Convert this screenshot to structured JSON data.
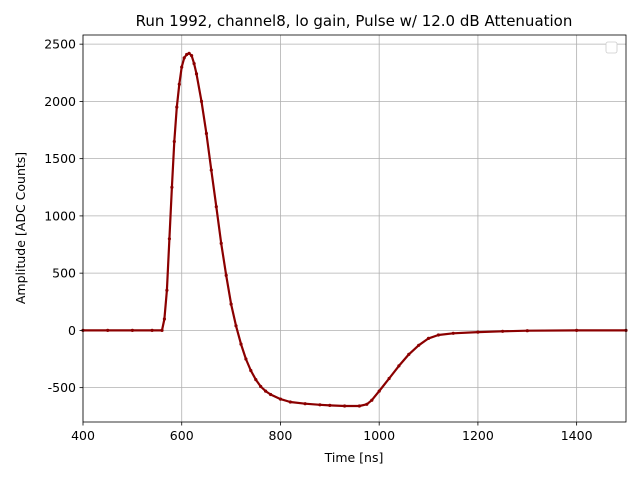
{
  "chart_data": {
    "type": "scatter",
    "title": "Run 1992, channel8, lo gain, Pulse w/ 12.0 dB Attenuation",
    "xlabel": "Time [ns]",
    "ylabel": "Amplitude [ADC Counts]",
    "xlim": [
      400,
      1500
    ],
    "ylim": [
      -800,
      2580
    ],
    "xticks": [
      400,
      600,
      800,
      1000,
      1200,
      1400
    ],
    "yticks": [
      -500,
      0,
      500,
      1000,
      1500,
      2000,
      2500
    ],
    "grid": true,
    "legend": "top-right (empty)",
    "series_color": "#8b0000",
    "series": [
      {
        "x": [
          400,
          450,
          500,
          540,
          560,
          565,
          570,
          575,
          580,
          585,
          590,
          595,
          600,
          605,
          610,
          615,
          620,
          625,
          630,
          640,
          650,
          660,
          670,
          680,
          690,
          700,
          710,
          720,
          730,
          740,
          750,
          760,
          770,
          780,
          800,
          820,
          850,
          880,
          900,
          930,
          960,
          975,
          985,
          1000,
          1020,
          1040,
          1060,
          1080,
          1100,
          1120,
          1150,
          1200,
          1250,
          1300,
          1400,
          1500
        ],
        "y": [
          0,
          0,
          0,
          0,
          0,
          100,
          350,
          800,
          1250,
          1650,
          1950,
          2150,
          2300,
          2380,
          2410,
          2420,
          2400,
          2330,
          2240,
          2000,
          1720,
          1400,
          1080,
          760,
          480,
          230,
          40,
          -120,
          -250,
          -350,
          -430,
          -490,
          -530,
          -560,
          -600,
          -625,
          -640,
          -650,
          -655,
          -660,
          -660,
          -645,
          -610,
          -530,
          -420,
          -310,
          -210,
          -130,
          -70,
          -40,
          -25,
          -15,
          -8,
          -3,
          0,
          0
        ]
      }
    ]
  }
}
